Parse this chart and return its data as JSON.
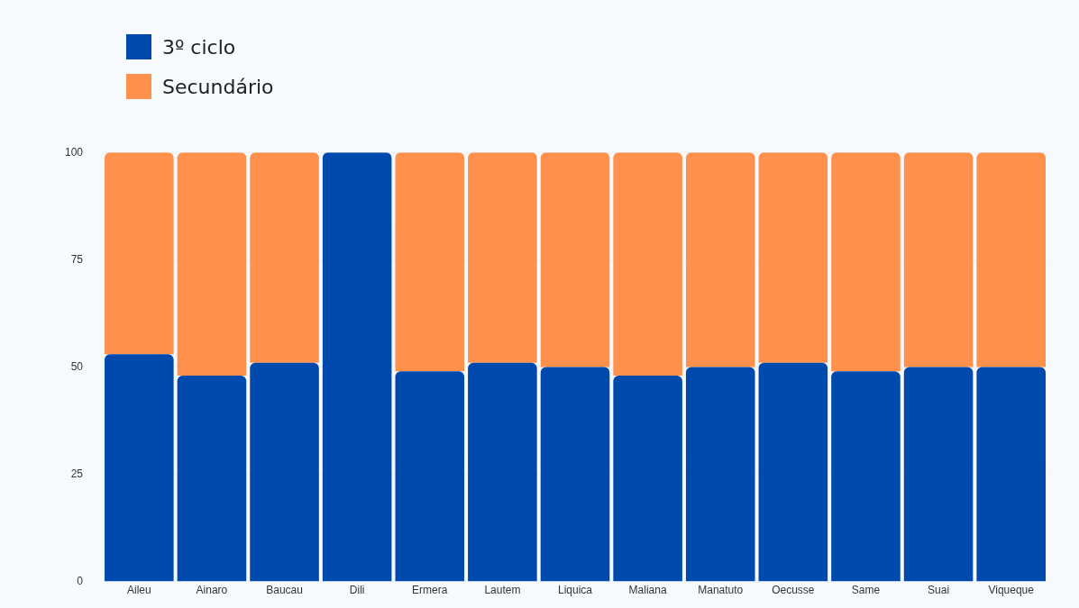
{
  "chart_data": {
    "type": "bar",
    "stacked": true,
    "categories": [
      "Aileu",
      "Ainaro",
      "Baucau",
      "Dili",
      "Ermera",
      "Lautem",
      "Liquica",
      "Maliana",
      "Manatuto",
      "Oecusse",
      "Same",
      "Suai",
      "Viqueque"
    ],
    "series": [
      {
        "name": "3º ciclo",
        "color": "#004aad",
        "values": [
          53,
          48,
          51,
          100,
          49,
          51,
          50,
          48,
          50,
          51,
          49,
          50,
          50
        ]
      },
      {
        "name": "Secundário",
        "color": "#ff914d",
        "values": [
          47,
          52,
          49,
          0,
          51,
          49,
          50,
          52,
          50,
          49,
          51,
          50,
          50
        ]
      }
    ],
    "ylim": [
      0,
      100
    ],
    "yticks": [
      0,
      25,
      50,
      75,
      100
    ],
    "grid": "y",
    "legend": "top left"
  }
}
